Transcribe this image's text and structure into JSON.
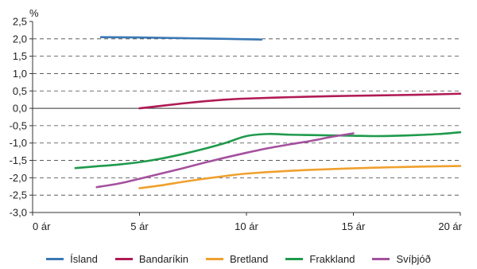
{
  "chart_data": {
    "type": "line",
    "title": "",
    "ylabel": "%",
    "xlabel": "",
    "x_unit": "ár",
    "xlim": [
      0,
      20
    ],
    "ylim": [
      -3.0,
      2.5
    ],
    "xticks": [
      0,
      5,
      10,
      15,
      20
    ],
    "xtick_labels": [
      "0 ár",
      "5 ár",
      "10 ár",
      "15 ár",
      "20 ár"
    ],
    "yticks": [
      2.5,
      2.0,
      1.5,
      1.0,
      0.5,
      0.0,
      -0.5,
      -1.0,
      -1.5,
      -2.0,
      -2.5,
      -3.0
    ],
    "ytick_labels": [
      "2,5",
      "2,0",
      "1,5",
      "1,0",
      "0,5",
      "0,0",
      "-0,5",
      "-1,0",
      "-1,5",
      "-2,0",
      "-2,5",
      "-3,0"
    ],
    "grid": "horizontal dashed",
    "legend_position": "bottom",
    "series": [
      {
        "name": "Ísland",
        "color": "#3a78b4",
        "x": [
          3.2,
          5,
          7,
          9,
          10.7
        ],
        "y": [
          2.05,
          2.04,
          2.02,
          2.0,
          1.98
        ]
      },
      {
        "name": "Bandaríkin",
        "color": "#b01a55",
        "x": [
          5,
          6,
          7,
          8,
          9,
          10,
          12,
          14,
          16,
          18,
          20
        ],
        "y": [
          0.0,
          0.07,
          0.14,
          0.2,
          0.25,
          0.28,
          0.32,
          0.35,
          0.37,
          0.39,
          0.42
        ]
      },
      {
        "name": "Bretland",
        "color": "#f0a02e",
        "x": [
          5,
          6,
          7,
          8,
          9,
          10,
          12,
          14,
          16,
          18,
          20
        ],
        "y": [
          -2.3,
          -2.22,
          -2.12,
          -2.03,
          -1.95,
          -1.88,
          -1.8,
          -1.75,
          -1.71,
          -1.68,
          -1.66
        ]
      },
      {
        "name": "Frakkland",
        "color": "#1f9a4c",
        "x": [
          2,
          3,
          4,
          5,
          6,
          7,
          8,
          9,
          10,
          11,
          12,
          13,
          14,
          15,
          16,
          17,
          18,
          19,
          20
        ],
        "y": [
          -1.72,
          -1.67,
          -1.62,
          -1.55,
          -1.45,
          -1.32,
          -1.17,
          -1.0,
          -0.8,
          -0.74,
          -0.76,
          -0.77,
          -0.78,
          -0.79,
          -0.8,
          -0.79,
          -0.77,
          -0.74,
          -0.69
        ]
      },
      {
        "name": "Svíþjóð",
        "color": "#a4519e",
        "x": [
          3,
          4,
          5,
          6,
          7,
          8,
          9,
          10,
          11,
          12,
          13,
          14,
          15
        ],
        "y": [
          -2.27,
          -2.17,
          -2.03,
          -1.88,
          -1.73,
          -1.57,
          -1.42,
          -1.28,
          -1.15,
          -1.04,
          -0.94,
          -0.82,
          -0.72
        ]
      }
    ]
  }
}
